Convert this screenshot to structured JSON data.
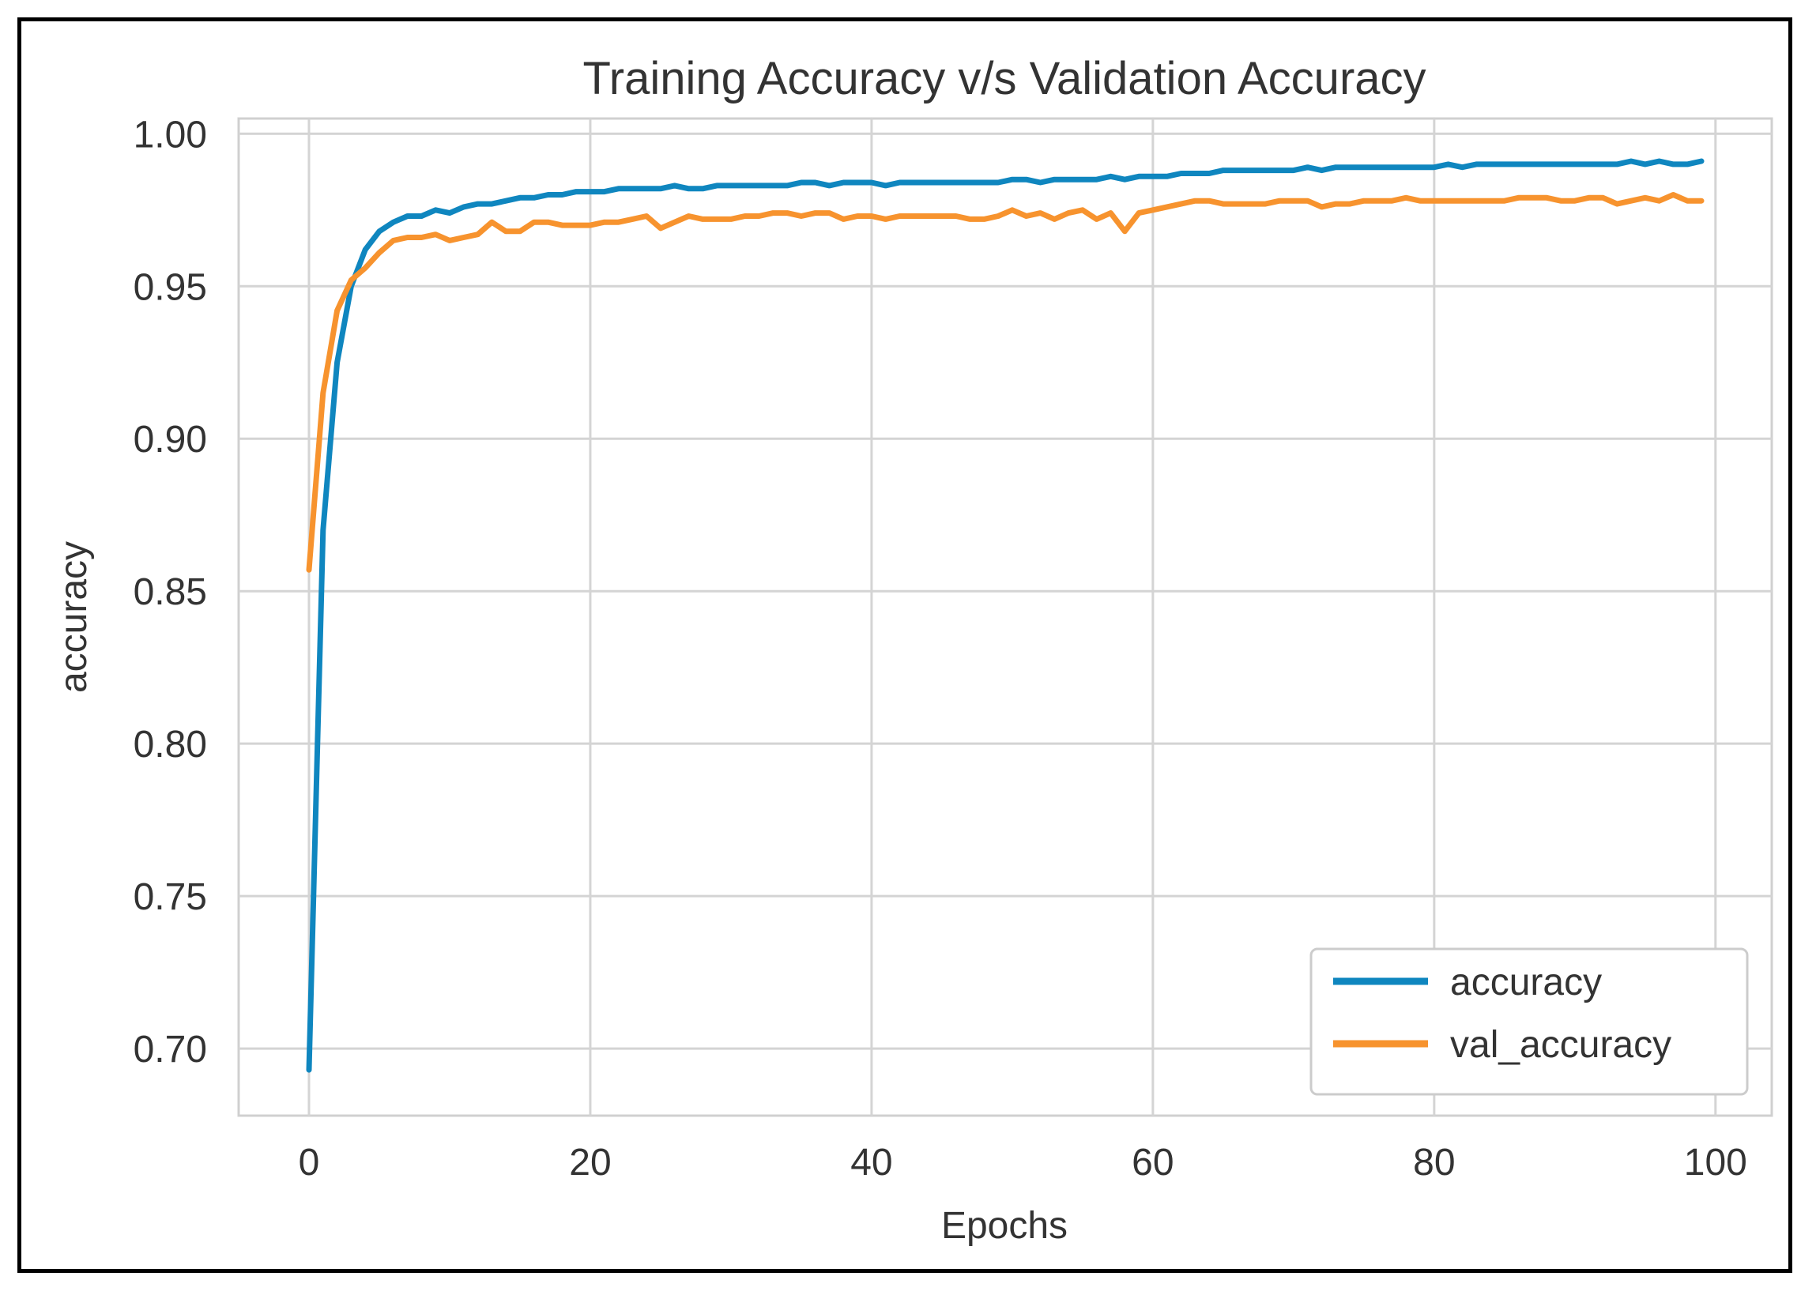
{
  "chart_data": {
    "type": "line",
    "title": "Training Accuracy v/s Validation Accuracy",
    "xlabel": "Epochs",
    "ylabel": "accuracy",
    "xlim": [
      -5,
      104
    ],
    "ylim": [
      0.678,
      1.005
    ],
    "xticks": [
      0,
      20,
      40,
      60,
      80,
      100
    ],
    "xtick_labels": [
      "0",
      "20",
      "40",
      "60",
      "80",
      "100"
    ],
    "yticks": [
      0.7,
      0.75,
      0.8,
      0.85,
      0.9,
      0.95,
      1.0
    ],
    "ytick_labels": [
      "0.70",
      "0.75",
      "0.80",
      "0.85",
      "0.90",
      "0.95",
      "1.00"
    ],
    "grid": true,
    "legend_position": "lower right",
    "series": [
      {
        "name": "accuracy",
        "color": "#0f86bf",
        "x": [
          0,
          1,
          2,
          3,
          4,
          5,
          6,
          7,
          8,
          9,
          10,
          11,
          12,
          13,
          14,
          15,
          16,
          17,
          18,
          19,
          20,
          21,
          22,
          23,
          24,
          25,
          26,
          27,
          28,
          29,
          30,
          31,
          32,
          33,
          34,
          35,
          36,
          37,
          38,
          39,
          40,
          41,
          42,
          43,
          44,
          45,
          46,
          47,
          48,
          49,
          50,
          51,
          52,
          53,
          54,
          55,
          56,
          57,
          58,
          59,
          60,
          61,
          62,
          63,
          64,
          65,
          66,
          67,
          68,
          69,
          70,
          71,
          72,
          73,
          74,
          75,
          76,
          77,
          78,
          79,
          80,
          81,
          82,
          83,
          84,
          85,
          86,
          87,
          88,
          89,
          90,
          91,
          92,
          93,
          94,
          95,
          96,
          97,
          98,
          99
        ],
        "values": [
          0.693,
          0.87,
          0.925,
          0.95,
          0.962,
          0.968,
          0.971,
          0.973,
          0.973,
          0.975,
          0.974,
          0.976,
          0.977,
          0.977,
          0.978,
          0.979,
          0.979,
          0.98,
          0.98,
          0.981,
          0.981,
          0.981,
          0.982,
          0.982,
          0.982,
          0.982,
          0.983,
          0.982,
          0.982,
          0.983,
          0.983,
          0.983,
          0.983,
          0.983,
          0.983,
          0.984,
          0.984,
          0.983,
          0.984,
          0.984,
          0.984,
          0.983,
          0.984,
          0.984,
          0.984,
          0.984,
          0.984,
          0.984,
          0.984,
          0.984,
          0.985,
          0.985,
          0.984,
          0.985,
          0.985,
          0.985,
          0.985,
          0.986,
          0.985,
          0.986,
          0.986,
          0.986,
          0.987,
          0.987,
          0.987,
          0.988,
          0.988,
          0.988,
          0.988,
          0.988,
          0.988,
          0.989,
          0.988,
          0.989,
          0.989,
          0.989,
          0.989,
          0.989,
          0.989,
          0.989,
          0.989,
          0.99,
          0.989,
          0.99,
          0.99,
          0.99,
          0.99,
          0.99,
          0.99,
          0.99,
          0.99,
          0.99,
          0.99,
          0.99,
          0.991,
          0.99,
          0.991,
          0.99,
          0.99,
          0.991
        ]
      },
      {
        "name": "val_accuracy",
        "color": "#f7932e",
        "x": [
          0,
          1,
          2,
          3,
          4,
          5,
          6,
          7,
          8,
          9,
          10,
          11,
          12,
          13,
          14,
          15,
          16,
          17,
          18,
          19,
          20,
          21,
          22,
          23,
          24,
          25,
          26,
          27,
          28,
          29,
          30,
          31,
          32,
          33,
          34,
          35,
          36,
          37,
          38,
          39,
          40,
          41,
          42,
          43,
          44,
          45,
          46,
          47,
          48,
          49,
          50,
          51,
          52,
          53,
          54,
          55,
          56,
          57,
          58,
          59,
          60,
          61,
          62,
          63,
          64,
          65,
          66,
          67,
          68,
          69,
          70,
          71,
          72,
          73,
          74,
          75,
          76,
          77,
          78,
          79,
          80,
          81,
          82,
          83,
          84,
          85,
          86,
          87,
          88,
          89,
          90,
          91,
          92,
          93,
          94,
          95,
          96,
          97,
          98,
          99
        ],
        "values": [
          0.857,
          0.915,
          0.942,
          0.952,
          0.956,
          0.961,
          0.965,
          0.966,
          0.966,
          0.967,
          0.965,
          0.966,
          0.967,
          0.971,
          0.968,
          0.968,
          0.971,
          0.971,
          0.97,
          0.97,
          0.97,
          0.971,
          0.971,
          0.972,
          0.973,
          0.969,
          0.971,
          0.973,
          0.972,
          0.972,
          0.972,
          0.973,
          0.973,
          0.974,
          0.974,
          0.973,
          0.974,
          0.974,
          0.972,
          0.973,
          0.973,
          0.972,
          0.973,
          0.973,
          0.973,
          0.973,
          0.973,
          0.972,
          0.972,
          0.973,
          0.975,
          0.973,
          0.974,
          0.972,
          0.974,
          0.975,
          0.972,
          0.974,
          0.968,
          0.974,
          0.975,
          0.976,
          0.977,
          0.978,
          0.978,
          0.977,
          0.977,
          0.977,
          0.977,
          0.978,
          0.978,
          0.978,
          0.976,
          0.977,
          0.977,
          0.978,
          0.978,
          0.978,
          0.979,
          0.978,
          0.978,
          0.978,
          0.978,
          0.978,
          0.978,
          0.978,
          0.979,
          0.979,
          0.979,
          0.978,
          0.978,
          0.979,
          0.979,
          0.977,
          0.978,
          0.979,
          0.978,
          0.98,
          0.978,
          0.978
        ]
      }
    ]
  }
}
